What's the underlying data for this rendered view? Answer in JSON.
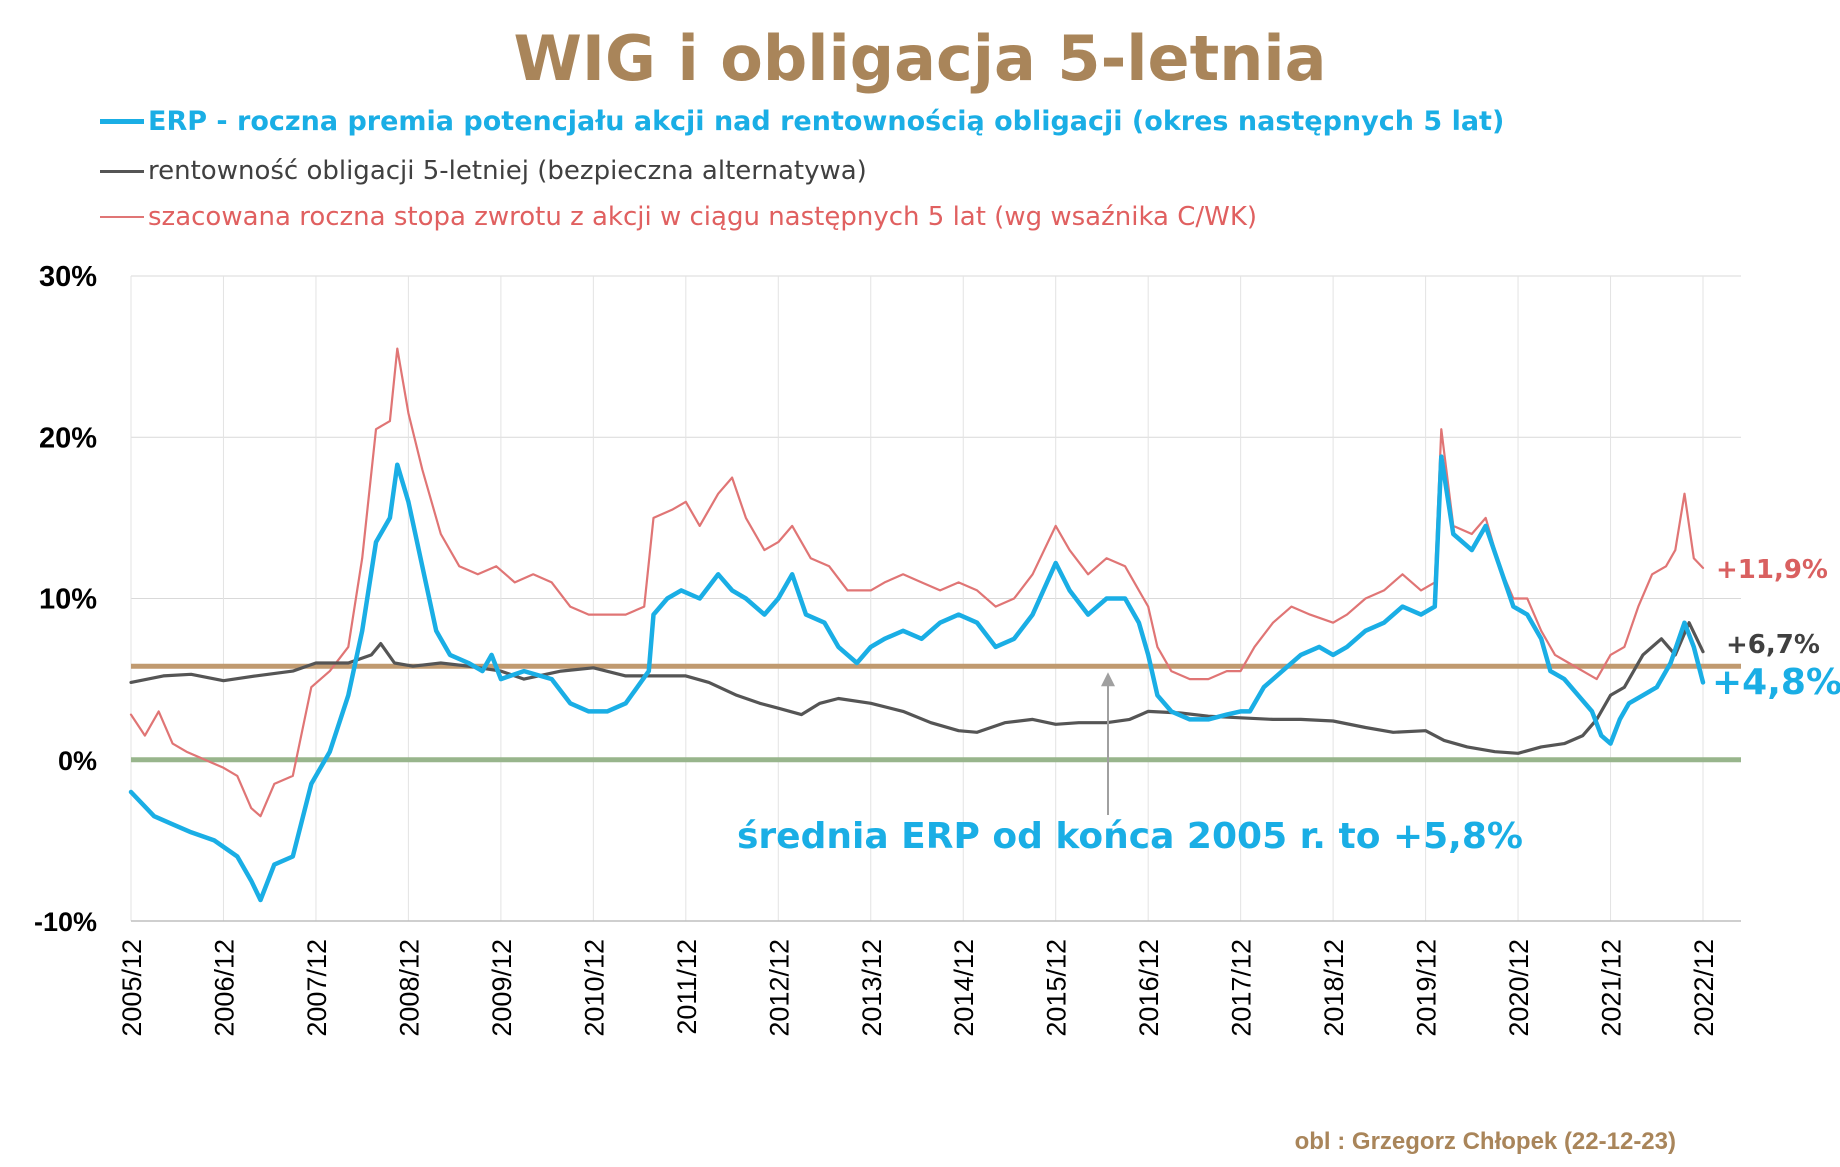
{
  "title": "WIG i obligacja 5-letnia",
  "legend": {
    "erp": "ERP - roczna premia potencjału akcji nad rentownością obligacji (okres następnych 5 lat)",
    "bond": "rentowność obligacji 5-letniej (bezpieczna alternatywa)",
    "stock": "szacowana roczna stopa zwrotu z akcji w ciągu następnych 5 lat (wg wsaźnika C/WK)"
  },
  "source_note": "obl : Grzegorz Chłopek (22-12-23)",
  "colors": {
    "erp": "#1aaee5",
    "bond": "#555555",
    "stock": "#e07575",
    "avg_line": "#c09a70",
    "zero_line": "#98b58c",
    "title": "#a9855a"
  },
  "chart_data": {
    "type": "line",
    "title": "WIG i obligacja 5-letnia",
    "x_ticks": [
      "2005/12",
      "2006/12",
      "2007/12",
      "2008/12",
      "2009/12",
      "2010/12",
      "2011/12",
      "2012/12",
      "2013/12",
      "2014/12",
      "2015/12",
      "2016/12",
      "2017/12",
      "2018/12",
      "2019/12",
      "2020/12",
      "2021/12",
      "2022/12"
    ],
    "y_ticks": [
      "30%",
      "20%",
      "10%",
      "0%",
      "-10%"
    ],
    "ylim": [
      -10,
      30
    ],
    "xlim": [
      2005.95,
      2022.95
    ],
    "grid": true,
    "series": [
      {
        "name": "ERP - roczna premia potencjału akcji nad rentownością obligacji (okres następnych 5 lat)",
        "key": "erp",
        "points": [
          [
            2005.95,
            -2.0
          ],
          [
            2006.2,
            -3.5
          ],
          [
            2006.4,
            -4.0
          ],
          [
            2006.6,
            -4.5
          ],
          [
            2006.85,
            -5.0
          ],
          [
            2007.1,
            -6.0
          ],
          [
            2007.25,
            -7.5
          ],
          [
            2007.35,
            -8.7
          ],
          [
            2007.5,
            -6.5
          ],
          [
            2007.7,
            -6.0
          ],
          [
            2007.9,
            -1.5
          ],
          [
            2008.1,
            0.5
          ],
          [
            2008.3,
            4.0
          ],
          [
            2008.45,
            8.0
          ],
          [
            2008.6,
            13.5
          ],
          [
            2008.75,
            15.0
          ],
          [
            2008.83,
            18.3
          ],
          [
            2008.95,
            16.0
          ],
          [
            2009.1,
            12.0
          ],
          [
            2009.25,
            8.0
          ],
          [
            2009.4,
            6.5
          ],
          [
            2009.6,
            6.0
          ],
          [
            2009.75,
            5.5
          ],
          [
            2009.85,
            6.5
          ],
          [
            2009.95,
            5.0
          ],
          [
            2010.2,
            5.5
          ],
          [
            2010.5,
            5.0
          ],
          [
            2010.7,
            3.5
          ],
          [
            2010.9,
            3.0
          ],
          [
            2011.1,
            3.0
          ],
          [
            2011.3,
            3.5
          ],
          [
            2011.55,
            5.5
          ],
          [
            2011.6,
            9.0
          ],
          [
            2011.75,
            10.0
          ],
          [
            2011.9,
            10.5
          ],
          [
            2012.1,
            10.0
          ],
          [
            2012.3,
            11.5
          ],
          [
            2012.45,
            10.5
          ],
          [
            2012.6,
            10.0
          ],
          [
            2012.8,
            9.0
          ],
          [
            2012.95,
            10.0
          ],
          [
            2013.1,
            11.5
          ],
          [
            2013.25,
            9.0
          ],
          [
            2013.45,
            8.5
          ],
          [
            2013.6,
            7.0
          ],
          [
            2013.8,
            6.0
          ],
          [
            2013.95,
            7.0
          ],
          [
            2014.1,
            7.5
          ],
          [
            2014.3,
            8.0
          ],
          [
            2014.5,
            7.5
          ],
          [
            2014.7,
            8.5
          ],
          [
            2014.9,
            9.0
          ],
          [
            2015.1,
            8.5
          ],
          [
            2015.3,
            7.0
          ],
          [
            2015.5,
            7.5
          ],
          [
            2015.7,
            9.0
          ],
          [
            2015.95,
            12.2
          ],
          [
            2016.1,
            10.5
          ],
          [
            2016.3,
            9.0
          ],
          [
            2016.5,
            10.0
          ],
          [
            2016.7,
            10.0
          ],
          [
            2016.85,
            8.5
          ],
          [
            2016.95,
            6.5
          ],
          [
            2017.05,
            4.0
          ],
          [
            2017.2,
            3.0
          ],
          [
            2017.4,
            2.5
          ],
          [
            2017.6,
            2.5
          ],
          [
            2017.8,
            2.8
          ],
          [
            2017.95,
            3.0
          ],
          [
            2018.05,
            3.0
          ],
          [
            2018.2,
            4.5
          ],
          [
            2018.4,
            5.5
          ],
          [
            2018.6,
            6.5
          ],
          [
            2018.8,
            7.0
          ],
          [
            2018.95,
            6.5
          ],
          [
            2019.1,
            7.0
          ],
          [
            2019.3,
            8.0
          ],
          [
            2019.5,
            8.5
          ],
          [
            2019.7,
            9.5
          ],
          [
            2019.9,
            9.0
          ],
          [
            2020.05,
            9.5
          ],
          [
            2020.12,
            18.8
          ],
          [
            2020.25,
            14.0
          ],
          [
            2020.45,
            13.0
          ],
          [
            2020.6,
            14.5
          ],
          [
            2020.75,
            12.0
          ],
          [
            2020.9,
            9.5
          ],
          [
            2021.05,
            9.0
          ],
          [
            2021.2,
            7.5
          ],
          [
            2021.3,
            5.5
          ],
          [
            2021.45,
            5.0
          ],
          [
            2021.6,
            4.0
          ],
          [
            2021.75,
            3.0
          ],
          [
            2021.85,
            1.5
          ],
          [
            2021.95,
            1.0
          ],
          [
            2022.05,
            2.5
          ],
          [
            2022.15,
            3.5
          ],
          [
            2022.3,
            4.0
          ],
          [
            2022.45,
            4.5
          ],
          [
            2022.6,
            6.0
          ],
          [
            2022.75,
            8.5
          ],
          [
            2022.85,
            7.0
          ],
          [
            2022.95,
            4.8
          ]
        ]
      },
      {
        "name": "rentowność obligacji 5-letniej (bezpieczna alternatywa)",
        "key": "bond",
        "points": [
          [
            2005.95,
            4.8
          ],
          [
            2006.3,
            5.2
          ],
          [
            2006.6,
            5.3
          ],
          [
            2006.95,
            4.9
          ],
          [
            2007.3,
            5.2
          ],
          [
            2007.7,
            5.5
          ],
          [
            2007.95,
            6.0
          ],
          [
            2008.3,
            6.0
          ],
          [
            2008.55,
            6.5
          ],
          [
            2008.65,
            7.2
          ],
          [
            2008.8,
            6.0
          ],
          [
            2009.0,
            5.8
          ],
          [
            2009.3,
            6.0
          ],
          [
            2009.6,
            5.8
          ],
          [
            2009.95,
            5.5
          ],
          [
            2010.2,
            5.0
          ],
          [
            2010.6,
            5.5
          ],
          [
            2010.95,
            5.7
          ],
          [
            2011.3,
            5.2
          ],
          [
            2011.7,
            5.2
          ],
          [
            2011.95,
            5.2
          ],
          [
            2012.2,
            4.8
          ],
          [
            2012.5,
            4.0
          ],
          [
            2012.75,
            3.5
          ],
          [
            2012.95,
            3.2
          ],
          [
            2013.2,
            2.8
          ],
          [
            2013.4,
            3.5
          ],
          [
            2013.6,
            3.8
          ],
          [
            2013.95,
            3.5
          ],
          [
            2014.3,
            3.0
          ],
          [
            2014.6,
            2.3
          ],
          [
            2014.9,
            1.8
          ],
          [
            2015.1,
            1.7
          ],
          [
            2015.4,
            2.3
          ],
          [
            2015.7,
            2.5
          ],
          [
            2015.95,
            2.2
          ],
          [
            2016.2,
            2.3
          ],
          [
            2016.5,
            2.3
          ],
          [
            2016.75,
            2.5
          ],
          [
            2016.95,
            3.0
          ],
          [
            2017.3,
            2.9
          ],
          [
            2017.6,
            2.7
          ],
          [
            2017.95,
            2.6
          ],
          [
            2018.3,
            2.5
          ],
          [
            2018.6,
            2.5
          ],
          [
            2018.95,
            2.4
          ],
          [
            2019.3,
            2.0
          ],
          [
            2019.6,
            1.7
          ],
          [
            2019.95,
            1.8
          ],
          [
            2020.15,
            1.2
          ],
          [
            2020.4,
            0.8
          ],
          [
            2020.7,
            0.5
          ],
          [
            2020.95,
            0.4
          ],
          [
            2021.2,
            0.8
          ],
          [
            2021.45,
            1.0
          ],
          [
            2021.65,
            1.5
          ],
          [
            2021.8,
            2.5
          ],
          [
            2021.95,
            4.0
          ],
          [
            2022.1,
            4.5
          ],
          [
            2022.3,
            6.5
          ],
          [
            2022.5,
            7.5
          ],
          [
            2022.65,
            6.5
          ],
          [
            2022.8,
            8.5
          ],
          [
            2022.95,
            6.7
          ]
        ]
      },
      {
        "name": "szacowana roczna stopa zwrotu z akcji w ciągu następnych 5 lat (wg wsaźnika C/WK)",
        "key": "stock",
        "points": [
          [
            2005.95,
            2.8
          ],
          [
            2006.1,
            1.5
          ],
          [
            2006.25,
            3.0
          ],
          [
            2006.4,
            1.0
          ],
          [
            2006.55,
            0.5
          ],
          [
            2006.75,
            0.0
          ],
          [
            2006.95,
            -0.5
          ],
          [
            2007.1,
            -1.0
          ],
          [
            2007.25,
            -3.0
          ],
          [
            2007.35,
            -3.5
          ],
          [
            2007.5,
            -1.5
          ],
          [
            2007.7,
            -1.0
          ],
          [
            2007.9,
            4.5
          ],
          [
            2008.1,
            5.5
          ],
          [
            2008.3,
            7.0
          ],
          [
            2008.45,
            12.5
          ],
          [
            2008.6,
            20.5
          ],
          [
            2008.75,
            21.0
          ],
          [
            2008.83,
            25.5
          ],
          [
            2008.95,
            21.5
          ],
          [
            2009.1,
            18.0
          ],
          [
            2009.3,
            14.0
          ],
          [
            2009.5,
            12.0
          ],
          [
            2009.7,
            11.5
          ],
          [
            2009.9,
            12.0
          ],
          [
            2010.1,
            11.0
          ],
          [
            2010.3,
            11.5
          ],
          [
            2010.5,
            11.0
          ],
          [
            2010.7,
            9.5
          ],
          [
            2010.9,
            9.0
          ],
          [
            2011.1,
            9.0
          ],
          [
            2011.3,
            9.0
          ],
          [
            2011.5,
            9.5
          ],
          [
            2011.6,
            15.0
          ],
          [
            2011.8,
            15.5
          ],
          [
            2011.95,
            16.0
          ],
          [
            2012.1,
            14.5
          ],
          [
            2012.3,
            16.5
          ],
          [
            2012.45,
            17.5
          ],
          [
            2012.6,
            15.0
          ],
          [
            2012.8,
            13.0
          ],
          [
            2012.95,
            13.5
          ],
          [
            2013.1,
            14.5
          ],
          [
            2013.3,
            12.5
          ],
          [
            2013.5,
            12.0
          ],
          [
            2013.7,
            10.5
          ],
          [
            2013.95,
            10.5
          ],
          [
            2014.1,
            11.0
          ],
          [
            2014.3,
            11.5
          ],
          [
            2014.5,
            11.0
          ],
          [
            2014.7,
            10.5
          ],
          [
            2014.9,
            11.0
          ],
          [
            2015.1,
            10.5
          ],
          [
            2015.3,
            9.5
          ],
          [
            2015.5,
            10.0
          ],
          [
            2015.7,
            11.5
          ],
          [
            2015.95,
            14.5
          ],
          [
            2016.1,
            13.0
          ],
          [
            2016.3,
            11.5
          ],
          [
            2016.5,
            12.5
          ],
          [
            2016.7,
            12.0
          ],
          [
            2016.85,
            10.5
          ],
          [
            2016.95,
            9.5
          ],
          [
            2017.05,
            7.0
          ],
          [
            2017.2,
            5.5
          ],
          [
            2017.4,
            5.0
          ],
          [
            2017.6,
            5.0
          ],
          [
            2017.8,
            5.5
          ],
          [
            2017.95,
            5.5
          ],
          [
            2018.1,
            7.0
          ],
          [
            2018.3,
            8.5
          ],
          [
            2018.5,
            9.5
          ],
          [
            2018.7,
            9.0
          ],
          [
            2018.95,
            8.5
          ],
          [
            2019.1,
            9.0
          ],
          [
            2019.3,
            10.0
          ],
          [
            2019.5,
            10.5
          ],
          [
            2019.7,
            11.5
          ],
          [
            2019.9,
            10.5
          ],
          [
            2020.05,
            11.0
          ],
          [
            2020.12,
            20.5
          ],
          [
            2020.25,
            14.5
          ],
          [
            2020.45,
            14.0
          ],
          [
            2020.6,
            15.0
          ],
          [
            2020.75,
            12.0
          ],
          [
            2020.9,
            10.0
          ],
          [
            2021.05,
            10.0
          ],
          [
            2021.2,
            8.0
          ],
          [
            2021.35,
            6.5
          ],
          [
            2021.5,
            6.0
          ],
          [
            2021.65,
            5.5
          ],
          [
            2021.8,
            5.0
          ],
          [
            2021.95,
            6.5
          ],
          [
            2022.1,
            7.0
          ],
          [
            2022.25,
            9.5
          ],
          [
            2022.4,
            11.5
          ],
          [
            2022.55,
            12.0
          ],
          [
            2022.65,
            13.0
          ],
          [
            2022.75,
            16.5
          ],
          [
            2022.85,
            12.5
          ],
          [
            2022.95,
            11.9
          ]
        ]
      }
    ],
    "reference_lines": [
      {
        "key": "avg",
        "y": 5.8
      },
      {
        "key": "zero",
        "y": 0.0
      }
    ],
    "annotations": {
      "avg_label": "średnia ERP od końca 2005 r. to +5,8%",
      "end_stock": "+11,9%",
      "end_bond": "+6,7%",
      "end_erp": "+4,8%"
    }
  }
}
